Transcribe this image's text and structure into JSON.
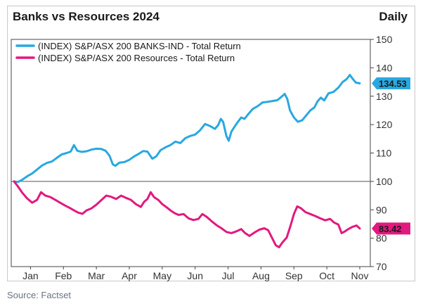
{
  "chart_data": {
    "type": "line",
    "title": "Banks vs Resources 2024",
    "frequency": "Daily",
    "source": "Source: Factset",
    "ylim": [
      70,
      150
    ],
    "yticks": [
      70,
      80,
      90,
      100,
      110,
      120,
      130,
      140,
      150
    ],
    "reference_line": 100,
    "xlabels": [
      "Jan",
      "Feb",
      "Mar",
      "Apr",
      "May",
      "Jun",
      "Jul",
      "Aug",
      "Sep",
      "Oct",
      "Nov"
    ],
    "grid": false,
    "legend_position": "top-left",
    "x_unit": "month index (0 = start of Jan 2024)",
    "series": [
      {
        "name": "(INDEX) S&P/ASX 200 BANKS-IND - Total Return",
        "color": "#29a8e0",
        "end_value": "134.53",
        "points": [
          [
            0.0,
            100.0
          ],
          [
            0.12,
            99.8
          ],
          [
            0.25,
            100.6
          ],
          [
            0.4,
            101.8
          ],
          [
            0.55,
            102.8
          ],
          [
            0.7,
            104.2
          ],
          [
            0.85,
            105.6
          ],
          [
            1.0,
            106.5
          ],
          [
            1.15,
            107.0
          ],
          [
            1.3,
            108.3
          ],
          [
            1.45,
            109.5
          ],
          [
            1.6,
            110.0
          ],
          [
            1.72,
            110.5
          ],
          [
            1.82,
            112.8
          ],
          [
            1.92,
            110.8
          ],
          [
            2.05,
            110.4
          ],
          [
            2.2,
            110.6
          ],
          [
            2.35,
            111.2
          ],
          [
            2.5,
            111.5
          ],
          [
            2.65,
            111.4
          ],
          [
            2.78,
            110.8
          ],
          [
            2.9,
            109.0
          ],
          [
            3.0,
            106.0
          ],
          [
            3.08,
            105.5
          ],
          [
            3.2,
            106.6
          ],
          [
            3.35,
            106.8
          ],
          [
            3.5,
            107.6
          ],
          [
            3.65,
            108.8
          ],
          [
            3.8,
            109.8
          ],
          [
            3.92,
            110.7
          ],
          [
            4.05,
            110.5
          ],
          [
            4.2,
            108.0
          ],
          [
            4.32,
            108.8
          ],
          [
            4.45,
            111.0
          ],
          [
            4.6,
            112.0
          ],
          [
            4.75,
            112.8
          ],
          [
            4.9,
            114.0
          ],
          [
            5.05,
            113.5
          ],
          [
            5.2,
            115.2
          ],
          [
            5.35,
            116.0
          ],
          [
            5.5,
            116.5
          ],
          [
            5.65,
            118.0
          ],
          [
            5.8,
            120.2
          ],
          [
            5.95,
            119.5
          ],
          [
            6.1,
            118.5
          ],
          [
            6.2,
            119.8
          ],
          [
            6.28,
            122.0
          ],
          [
            6.35,
            121.0
          ],
          [
            6.45,
            116.0
          ],
          [
            6.52,
            114.3
          ],
          [
            6.6,
            117.5
          ],
          [
            6.75,
            120.2
          ],
          [
            6.9,
            122.5
          ],
          [
            7.0,
            122.0
          ],
          [
            7.1,
            123.5
          ],
          [
            7.25,
            125.5
          ],
          [
            7.4,
            126.5
          ],
          [
            7.55,
            127.8
          ],
          [
            7.7,
            128.0
          ],
          [
            7.85,
            128.3
          ],
          [
            8.0,
            128.6
          ],
          [
            8.12,
            129.8
          ],
          [
            8.22,
            130.8
          ],
          [
            8.3,
            129.0
          ],
          [
            8.38,
            125.0
          ],
          [
            8.5,
            122.5
          ],
          [
            8.62,
            121.0
          ],
          [
            8.75,
            121.5
          ],
          [
            8.9,
            123.6
          ],
          [
            9.0,
            125.0
          ],
          [
            9.12,
            126.0
          ],
          [
            9.22,
            128.2
          ],
          [
            9.32,
            129.5
          ],
          [
            9.42,
            128.5
          ],
          [
            9.55,
            131.0
          ],
          [
            9.7,
            131.5
          ],
          [
            9.85,
            133.0
          ],
          [
            9.98,
            135.0
          ],
          [
            10.1,
            136.0
          ],
          [
            10.2,
            137.5
          ],
          [
            10.28,
            136.2
          ],
          [
            10.38,
            134.8
          ],
          [
            10.5,
            134.53
          ]
        ]
      },
      {
        "name": "(INDEX) S&P/ASX 200 Resources - Total Return",
        "color": "#e2197e",
        "end_value": "83.42",
        "points": [
          [
            0.0,
            100.0
          ],
          [
            0.12,
            98.2
          ],
          [
            0.25,
            96.0
          ],
          [
            0.4,
            94.0
          ],
          [
            0.55,
            92.5
          ],
          [
            0.7,
            93.5
          ],
          [
            0.82,
            96.2
          ],
          [
            0.95,
            95.0
          ],
          [
            1.1,
            94.5
          ],
          [
            1.25,
            93.5
          ],
          [
            1.4,
            92.5
          ],
          [
            1.55,
            91.5
          ],
          [
            1.7,
            90.6
          ],
          [
            1.82,
            89.8
          ],
          [
            1.95,
            89.0
          ],
          [
            2.08,
            88.6
          ],
          [
            2.2,
            89.8
          ],
          [
            2.35,
            90.5
          ],
          [
            2.5,
            91.8
          ],
          [
            2.65,
            93.4
          ],
          [
            2.8,
            95.0
          ],
          [
            2.95,
            94.6
          ],
          [
            3.1,
            93.8
          ],
          [
            3.25,
            95.0
          ],
          [
            3.4,
            94.2
          ],
          [
            3.55,
            93.5
          ],
          [
            3.7,
            92.0
          ],
          [
            3.85,
            91.0
          ],
          [
            3.95,
            92.8
          ],
          [
            4.05,
            93.8
          ],
          [
            4.15,
            96.2
          ],
          [
            4.25,
            94.5
          ],
          [
            4.38,
            93.5
          ],
          [
            4.5,
            92.0
          ],
          [
            4.62,
            91.0
          ],
          [
            4.75,
            89.8
          ],
          [
            4.88,
            88.8
          ],
          [
            5.0,
            88.2
          ],
          [
            5.15,
            88.5
          ],
          [
            5.3,
            87.0
          ],
          [
            5.45,
            86.4
          ],
          [
            5.6,
            86.8
          ],
          [
            5.72,
            88.5
          ],
          [
            5.85,
            87.5
          ],
          [
            6.0,
            86.0
          ],
          [
            6.15,
            84.6
          ],
          [
            6.3,
            83.5
          ],
          [
            6.45,
            82.2
          ],
          [
            6.6,
            81.8
          ],
          [
            6.75,
            82.4
          ],
          [
            6.9,
            83.2
          ],
          [
            7.02,
            81.8
          ],
          [
            7.15,
            80.8
          ],
          [
            7.3,
            82.0
          ],
          [
            7.45,
            83.0
          ],
          [
            7.6,
            83.5
          ],
          [
            7.72,
            82.8
          ],
          [
            7.85,
            79.8
          ],
          [
            7.95,
            77.5
          ],
          [
            8.05,
            76.8
          ],
          [
            8.15,
            78.5
          ],
          [
            8.28,
            80.2
          ],
          [
            8.4,
            84.5
          ],
          [
            8.5,
            88.5
          ],
          [
            8.6,
            91.2
          ],
          [
            8.72,
            90.5
          ],
          [
            8.85,
            89.2
          ],
          [
            9.0,
            88.5
          ],
          [
            9.15,
            87.8
          ],
          [
            9.3,
            87.0
          ],
          [
            9.45,
            86.3
          ],
          [
            9.6,
            86.8
          ],
          [
            9.72,
            85.5
          ],
          [
            9.85,
            84.8
          ],
          [
            9.95,
            81.8
          ],
          [
            10.05,
            82.4
          ],
          [
            10.15,
            83.2
          ],
          [
            10.28,
            84.0
          ],
          [
            10.4,
            84.5
          ],
          [
            10.5,
            83.42
          ]
        ]
      }
    ]
  }
}
